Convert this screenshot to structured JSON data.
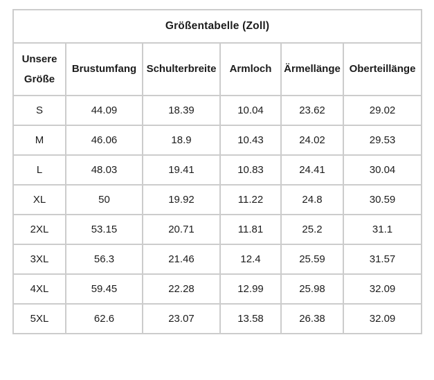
{
  "chart_data": {
    "type": "table",
    "title": "Größentabelle (Zoll)",
    "columns": [
      "Unsere Größe",
      "Brustumfang",
      "Schulterbreite",
      "Armloch",
      "Ärmellänge",
      "Oberteillänge"
    ],
    "rows": [
      {
        "size": "S",
        "values": [
          "44.09",
          "18.39",
          "10.04",
          "23.62",
          "29.02"
        ]
      },
      {
        "size": "M",
        "values": [
          "46.06",
          "18.9",
          "10.43",
          "24.02",
          "29.53"
        ]
      },
      {
        "size": "L",
        "values": [
          "48.03",
          "19.41",
          "10.83",
          "24.41",
          "30.04"
        ]
      },
      {
        "size": "XL",
        "values": [
          "50",
          "19.92",
          "11.22",
          "24.8",
          "30.59"
        ]
      },
      {
        "size": "2XL",
        "values": [
          "53.15",
          "20.71",
          "11.81",
          "25.2",
          "31.1"
        ]
      },
      {
        "size": "3XL",
        "values": [
          "56.3",
          "21.46",
          "12.4",
          "25.59",
          "31.57"
        ]
      },
      {
        "size": "4XL",
        "values": [
          "59.45",
          "22.28",
          "12.99",
          "25.98",
          "32.09"
        ]
      },
      {
        "size": "5XL",
        "values": [
          "62.6",
          "23.07",
          "13.58",
          "26.38",
          "32.09"
        ]
      }
    ],
    "unit": "Zoll",
    "layout": {
      "grid": true,
      "header_rows": 2,
      "text_align": "center"
    }
  },
  "colors": {
    "border": "#cccccc",
    "text": "#1c1c1c",
    "background": "#ffffff"
  }
}
